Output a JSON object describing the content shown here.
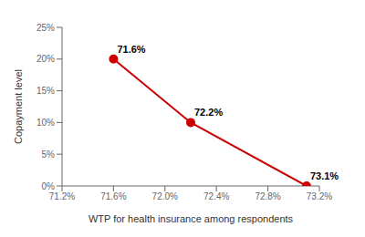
{
  "chart_data": {
    "type": "line",
    "x": [
      71.6,
      72.2,
      73.1
    ],
    "values": [
      20,
      10,
      0
    ],
    "color": "#cc0000",
    "marker": "circle",
    "line_style": "solid",
    "xlabel": "WTP for health insurance among respondents",
    "ylabel": "Copayment level",
    "xlim": [
      71.2,
      73.2
    ],
    "ylim": [
      0,
      25
    ],
    "xticks": [
      {
        "value": 71.2,
        "label": "71.2%"
      },
      {
        "value": 71.6,
        "label": "71.6%"
      },
      {
        "value": 72.0,
        "label": "72.0%"
      },
      {
        "value": 72.4,
        "label": "72.4%"
      },
      {
        "value": 72.8,
        "label": "72.8%"
      },
      {
        "value": 73.2,
        "label": "73.2%"
      }
    ],
    "yticks": [
      {
        "value": 0,
        "label": "0%"
      },
      {
        "value": 5,
        "label": "5%"
      },
      {
        "value": 10,
        "label": "10%"
      },
      {
        "value": 15,
        "label": "15%"
      },
      {
        "value": 20,
        "label": "20%"
      },
      {
        "value": 25,
        "label": "25%"
      }
    ],
    "annotations": [
      {
        "text": "71.6%",
        "x": 71.6,
        "y": 20
      },
      {
        "text": "72.2%",
        "x": 72.2,
        "y": 10
      },
      {
        "text": "73.1%",
        "x": 73.1,
        "y": 0
      }
    ],
    "grid": false
  }
}
